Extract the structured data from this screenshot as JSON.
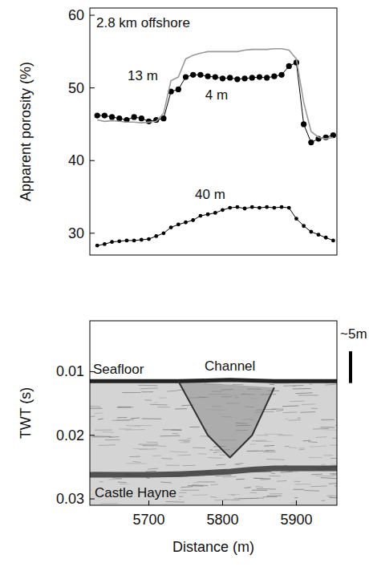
{
  "chart_data": [
    {
      "type": "line",
      "annotation": "2.8 km offshore",
      "ylabel": "Apparent porosity (%)",
      "x": [
        5630,
        5640,
        5650,
        5660,
        5670,
        5680,
        5690,
        5700,
        5710,
        5720,
        5730,
        5740,
        5750,
        5760,
        5770,
        5780,
        5790,
        5800,
        5810,
        5820,
        5830,
        5840,
        5850,
        5860,
        5870,
        5880,
        5890,
        5900,
        5910,
        5920,
        5930,
        5940,
        5950
      ],
      "xlim": [
        5620,
        5955
      ],
      "ylim": [
        27,
        61
      ],
      "yticks": [
        30,
        40,
        50,
        60
      ],
      "tick_labels": "y",
      "series": [
        {
          "name": "4 m",
          "color": "#000000",
          "marker": "circle",
          "line_style": "solid",
          "values": [
            46.2,
            46.2,
            46.0,
            45.8,
            45.6,
            46.0,
            45.8,
            45.4,
            45.6,
            45.8,
            49.5,
            49.8,
            51.5,
            51.8,
            51.8,
            51.6,
            51.5,
            51.3,
            51.4,
            51.2,
            51.3,
            51.4,
            51.5,
            51.4,
            51.6,
            51.8,
            53.0,
            53.5,
            45.0,
            42.5,
            43.0,
            43.2,
            43.5
          ]
        },
        {
          "name": "13 m",
          "color": "#9a9a9a",
          "marker": "none",
          "line_style": "solid",
          "values": [
            45.6,
            45.4,
            45.5,
            45.4,
            45.3,
            45.3,
            45.2,
            45.3,
            45.4,
            46.5,
            51.0,
            51.5,
            54.0,
            54.5,
            54.8,
            55.0,
            55.0,
            55.0,
            55.0,
            55.0,
            55.2,
            55.3,
            55.3,
            55.3,
            55.4,
            55.4,
            55.2,
            54.0,
            48.0,
            44.0,
            43.2,
            43.0,
            43.2
          ]
        },
        {
          "name": "40 m",
          "color": "#000000",
          "marker": "circle",
          "line_style": "solid",
          "values": [
            28.3,
            28.5,
            28.8,
            28.9,
            29.0,
            29.0,
            29.1,
            29.2,
            29.6,
            30.0,
            30.8,
            31.2,
            31.5,
            31.8,
            32.4,
            32.6,
            32.8,
            33.2,
            33.5,
            33.6,
            33.4,
            33.6,
            33.5,
            33.6,
            33.5,
            33.6,
            33.5,
            32.0,
            31.0,
            30.2,
            29.8,
            29.4,
            29.0
          ]
        }
      ]
    },
    {
      "type": "seismic",
      "xlabel": "Distance (m)",
      "ylabel": "TWT (s)",
      "x": [
        5620,
        5700,
        5740,
        5780,
        5810,
        5840,
        5870,
        5900,
        5955
      ],
      "xlim": [
        5620,
        5955
      ],
      "ylim": [
        0.002,
        0.031
      ],
      "xticks": [
        5700,
        5800,
        5900
      ],
      "yticks": [
        0.01,
        0.02,
        0.03
      ],
      "scale_bar": {
        "label": "~5m",
        "value": 0.005
      },
      "series": [
        {
          "name": "Seafloor",
          "color": "#222222",
          "values": [
            0.0115,
            0.0115,
            0.0115,
            0.0114,
            0.0113,
            0.0114,
            0.0115,
            0.0115,
            0.0115
          ]
        },
        {
          "name": "Channel",
          "color": "#333333",
          "values": [
            null,
            null,
            0.0115,
            0.02,
            0.0235,
            0.02,
            0.0125,
            null,
            null
          ]
        },
        {
          "name": "Castle Hayne",
          "color": "#3a3a3a",
          "values": [
            0.0262,
            0.0262,
            0.0261,
            0.0259,
            0.0257,
            0.0254,
            0.0252,
            0.0252,
            0.0252
          ]
        }
      ]
    }
  ]
}
